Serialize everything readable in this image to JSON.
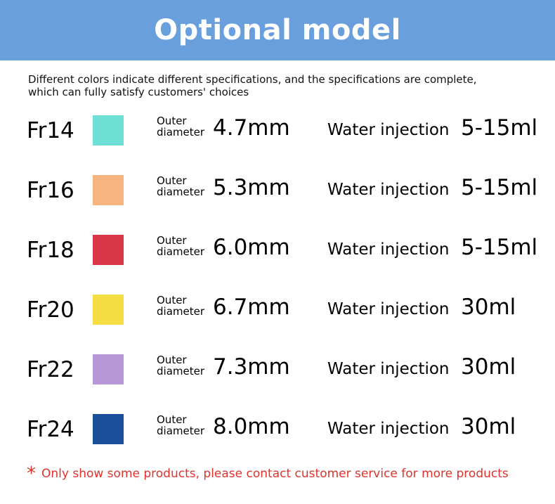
{
  "header": {
    "title": "Optional model",
    "background_color": "#6A9FDE"
  },
  "intro": {
    "line1": "Different colors indicate different specifications, and the specifications are complete,",
    "line2": "which can fully satisfy customers' choices"
  },
  "labels": {
    "outer_line1": "Outer",
    "outer_line2": "diameter",
    "water_injection": "Water injection"
  },
  "models": [
    {
      "model": "Fr14",
      "color": "#6EDFD4",
      "outer_diameter": "4.7mm",
      "water_injection": "5-15ml"
    },
    {
      "model": "Fr16",
      "color": "#F8B47E",
      "outer_diameter": "5.3mm",
      "water_injection": "5-15ml"
    },
    {
      "model": "Fr18",
      "color": "#D83649",
      "outer_diameter": "6.0mm",
      "water_injection": "5-15ml"
    },
    {
      "model": "Fr20",
      "color": "#F4DE44",
      "outer_diameter": "6.7mm",
      "water_injection": "30ml"
    },
    {
      "model": "Fr22",
      "color": "#B897D9",
      "outer_diameter": "7.3mm",
      "water_injection": "30ml"
    },
    {
      "model": "Fr24",
      "color": "#1B4F9A",
      "outer_diameter": "8.0mm",
      "water_injection": "30ml"
    }
  ],
  "footnote": {
    "star": "*",
    "text": "Only show some products, please contact customer service for more products",
    "color": "#E0322C"
  }
}
